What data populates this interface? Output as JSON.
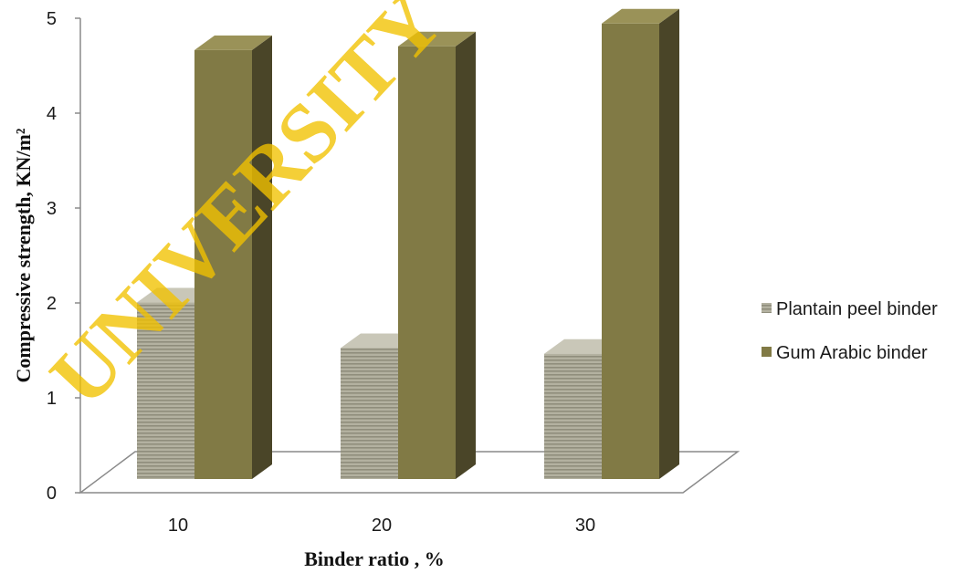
{
  "watermark": "UNIVERSITY O",
  "chart_data": {
    "type": "bar",
    "style": "3d-clustered-column",
    "categories": [
      "10",
      "20",
      "30"
    ],
    "series": [
      {
        "name": "Plantain peel binder",
        "values": [
          1.86,
          1.38,
          1.32
        ],
        "color": "#a8a694"
      },
      {
        "name": "Gum Arabic binder",
        "values": [
          4.52,
          4.56,
          4.8
        ],
        "color": "#817a45"
      }
    ],
    "title": "",
    "xlabel": "Binder ratio , %",
    "ylabel": "Compressive strength, KN/m²",
    "ylim": [
      0,
      5
    ],
    "yticks": [
      "0",
      "1",
      "2",
      "3",
      "4",
      "5"
    ],
    "grid": false,
    "legend_position": "right"
  }
}
